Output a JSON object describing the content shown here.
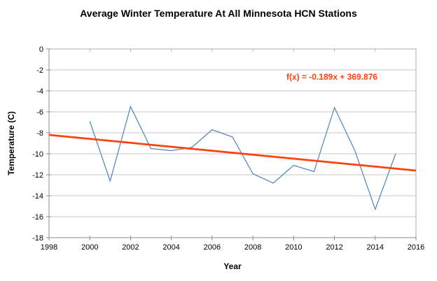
{
  "chart": {
    "title": "Average Winter Temperature At All Minnesota HCN Stations",
    "x_axis_title": "Year",
    "y_axis_title": "Temperature (C)",
    "equation": "f(x) = -0.189x + 369.876"
  },
  "chart_data": {
    "type": "line",
    "title": "Average Winter Temperature At All Minnesota HCN Stations",
    "xlabel": "Year",
    "ylabel": "Temperature (C)",
    "xlim": [
      1998,
      2016
    ],
    "ylim": [
      -18,
      0
    ],
    "x_ticks": [
      1998,
      2000,
      2002,
      2004,
      2006,
      2008,
      2010,
      2012,
      2014,
      2016
    ],
    "y_ticks": [
      0,
      -2,
      -4,
      -6,
      -8,
      -10,
      -12,
      -14,
      -16,
      -18
    ],
    "grid": "horizontal",
    "legend": "none",
    "series": [
      {
        "x": [
          2000,
          2001,
          2002,
          2003,
          2004,
          2005,
          2006,
          2007,
          2008,
          2009,
          2010,
          2011,
          2012,
          2013,
          2014,
          2015
        ],
        "values": [
          -6.9,
          -12.6,
          -5.5,
          -9.5,
          -9.7,
          -9.4,
          -7.7,
          -8.4,
          -11.9,
          -12.8,
          -11.1,
          -11.7,
          -5.6,
          -9.7,
          -15.3,
          -10.0
        ],
        "color": "#4f81bd",
        "line_width": 1.2
      }
    ],
    "trend_line": {
      "label": "f(x) = -0.189x + 369.876",
      "slope": -0.189,
      "intercept": 369.876,
      "x_endpoints": [
        1998,
        2016
      ],
      "y_endpoints": [
        -8.2,
        -11.6
      ],
      "color": "#ff420e",
      "line_width": 2.75
    },
    "colors": {
      "gridline": "#c9c9c9",
      "plot_border": "#b2b2b2",
      "axis": "#8e8e8e",
      "background": "#ffffff",
      "text": "#000000"
    }
  }
}
